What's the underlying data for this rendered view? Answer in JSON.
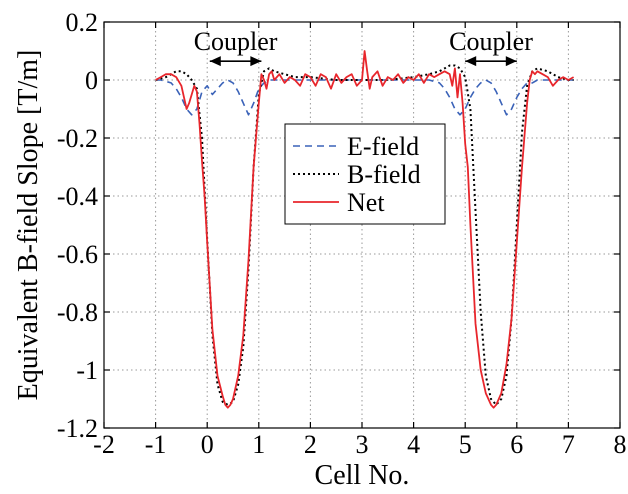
{
  "chart_data": {
    "type": "line",
    "title": "",
    "xlabel": "Cell No.",
    "ylabel": "Equivalent B-field Slope [T/m]",
    "xlim": [
      -2,
      8
    ],
    "ylim": [
      -1.2,
      0.2
    ],
    "xticks": [
      -2,
      -1,
      0,
      1,
      2,
      3,
      4,
      5,
      6,
      7,
      8
    ],
    "xtick_labels": [
      "-2",
      "-1",
      "0",
      "1",
      "2",
      "3",
      "4",
      "5",
      "6",
      "7",
      "8"
    ],
    "yticks": [
      -1.2,
      -1.0,
      -0.8,
      -0.6,
      -0.4,
      -0.2,
      0,
      0.2
    ],
    "ytick_labels": [
      "-1.2",
      "-1",
      "-0.8",
      "-0.6",
      "-0.4",
      "-0.2",
      "0",
      "0.2"
    ],
    "grid": true,
    "legend_position": "center",
    "annotations": [
      {
        "text": "Coupler",
        "x": 0.55,
        "y": 0.135
      },
      {
        "text": "Coupler",
        "x": 5.5,
        "y": 0.135
      }
    ],
    "arrows": [
      {
        "x1": 0.05,
        "x2": 1.05,
        "y": 0.065
      },
      {
        "x1": 5.0,
        "x2": 6.0,
        "y": 0.065
      }
    ],
    "series": [
      {
        "name": "E-field",
        "color": "#3a62b8",
        "dash": "dashed",
        "x": [
          -1.0,
          -0.9,
          -0.8,
          -0.7,
          -0.6,
          -0.5,
          -0.4,
          -0.3,
          -0.2,
          -0.1,
          0.0,
          0.1,
          0.2,
          0.3,
          0.4,
          0.5,
          0.6,
          0.7,
          0.8,
          0.9,
          1.0,
          1.1,
          1.2,
          1.4,
          1.6,
          1.8,
          2.0,
          2.5,
          3.0,
          3.5,
          4.0,
          4.3,
          4.5,
          4.6,
          4.7,
          4.8,
          4.9,
          5.0,
          5.1,
          5.2,
          5.3,
          5.4,
          5.5,
          5.6,
          5.7,
          5.8,
          5.9,
          6.0,
          6.1,
          6.2,
          6.3,
          6.4,
          6.6,
          6.8,
          7.0,
          7.1
        ],
        "y": [
          0.0,
          0.0,
          -0.005,
          -0.01,
          -0.03,
          -0.06,
          -0.1,
          -0.12,
          -0.1,
          -0.04,
          -0.02,
          -0.05,
          -0.03,
          -0.01,
          0.0,
          -0.01,
          -0.04,
          -0.08,
          -0.12,
          -0.08,
          -0.03,
          -0.01,
          0.0,
          0.0,
          0.0,
          0.0,
          0.0,
          0.0,
          0.0,
          0.0,
          0.0,
          0.0,
          -0.01,
          -0.03,
          -0.06,
          -0.1,
          -0.12,
          -0.1,
          -0.06,
          -0.03,
          -0.01,
          0.0,
          -0.01,
          -0.04,
          -0.08,
          -0.12,
          -0.1,
          -0.06,
          -0.03,
          -0.01,
          -0.01,
          0.0,
          0.0,
          0.0,
          0.0,
          0.0
        ]
      },
      {
        "name": "B-field",
        "color": "#000000",
        "dash": "dotted",
        "x": [
          -1.0,
          -0.8,
          -0.6,
          -0.5,
          -0.4,
          -0.3,
          -0.2,
          -0.1,
          0.0,
          0.1,
          0.2,
          0.3,
          0.4,
          0.5,
          0.6,
          0.7,
          0.8,
          0.9,
          1.0,
          1.1,
          1.2,
          1.3,
          1.5,
          1.7,
          2.0,
          2.5,
          3.0,
          3.5,
          4.0,
          4.3,
          4.5,
          4.6,
          4.7,
          4.8,
          4.9,
          5.0,
          5.1,
          5.2,
          5.3,
          5.4,
          5.5,
          5.6,
          5.7,
          5.8,
          5.9,
          6.0,
          6.1,
          6.2,
          6.3,
          6.4,
          6.6,
          6.8,
          7.0,
          7.1
        ],
        "y": [
          0.0,
          0.01,
          0.03,
          0.03,
          0.02,
          0.0,
          -0.03,
          -0.2,
          -0.55,
          -0.88,
          -1.05,
          -1.11,
          -1.12,
          -1.11,
          -1.05,
          -0.92,
          -0.65,
          -0.3,
          -0.05,
          0.03,
          0.04,
          0.03,
          0.02,
          0.01,
          0.01,
          0.0,
          0.0,
          0.0,
          0.01,
          0.02,
          0.03,
          0.04,
          0.05,
          0.05,
          0.04,
          0.01,
          -0.1,
          -0.45,
          -0.8,
          -1.02,
          -1.1,
          -1.12,
          -1.1,
          -1.02,
          -0.82,
          -0.5,
          -0.18,
          -0.02,
          0.03,
          0.04,
          0.03,
          0.01,
          0.0,
          0.0
        ]
      },
      {
        "name": "Net",
        "color": "#e8262c",
        "dash": "solid",
        "x": [
          -1.0,
          -0.9,
          -0.8,
          -0.7,
          -0.6,
          -0.5,
          -0.45,
          -0.4,
          -0.35,
          -0.3,
          -0.25,
          -0.2,
          -0.15,
          -0.1,
          -0.05,
          0.0,
          0.1,
          0.2,
          0.3,
          0.35,
          0.4,
          0.45,
          0.5,
          0.6,
          0.7,
          0.8,
          0.9,
          1.0,
          1.05,
          1.1,
          1.15,
          1.2,
          1.25,
          1.3,
          1.4,
          1.5,
          1.6,
          1.7,
          1.8,
          1.9,
          2.0,
          2.1,
          2.2,
          2.3,
          2.4,
          2.5,
          2.6,
          2.7,
          2.8,
          2.9,
          3.0,
          3.05,
          3.1,
          3.15,
          3.2,
          3.3,
          3.4,
          3.5,
          3.6,
          3.7,
          3.8,
          3.9,
          4.0,
          4.1,
          4.2,
          4.3,
          4.4,
          4.5,
          4.6,
          4.7,
          4.75,
          4.8,
          4.85,
          4.9,
          4.95,
          5.0,
          5.05,
          5.1,
          5.2,
          5.3,
          5.4,
          5.5,
          5.55,
          5.6,
          5.7,
          5.8,
          5.9,
          6.0,
          6.1,
          6.2,
          6.25,
          6.3,
          6.35,
          6.4,
          6.5,
          6.6,
          6.7,
          6.8,
          6.9,
          7.0,
          7.1
        ],
        "y": [
          0.0,
          0.01,
          0.02,
          0.02,
          0.01,
          -0.02,
          -0.06,
          -0.1,
          -0.08,
          -0.05,
          -0.02,
          -0.04,
          -0.15,
          -0.28,
          -0.4,
          -0.56,
          -0.86,
          -1.02,
          -1.09,
          -1.12,
          -1.13,
          -1.12,
          -1.1,
          -1.02,
          -0.88,
          -0.62,
          -0.3,
          -0.08,
          0.02,
          0.0,
          -0.03,
          0.02,
          0.03,
          0.0,
          0.02,
          -0.01,
          0.01,
          0.0,
          -0.02,
          0.02,
          0.01,
          -0.02,
          0.02,
          0.01,
          -0.03,
          0.02,
          -0.01,
          0.01,
          0.02,
          -0.02,
          0.0,
          0.1,
          0.03,
          -0.03,
          0.01,
          0.03,
          -0.02,
          0.01,
          0.0,
          0.02,
          -0.01,
          0.01,
          0.0,
          0.02,
          -0.01,
          0.02,
          0.01,
          0.02,
          0.03,
          0.02,
          -0.02,
          0.04,
          -0.06,
          0.02,
          -0.08,
          -0.22,
          -0.3,
          -0.5,
          -0.84,
          -1.0,
          -1.08,
          -1.12,
          -1.13,
          -1.12,
          -1.08,
          -0.98,
          -0.82,
          -0.56,
          -0.3,
          -0.08,
          0.0,
          0.03,
          0.02,
          0.03,
          0.02,
          0.01,
          -0.02,
          0.0,
          0.01,
          0.0,
          0.01
        ]
      }
    ]
  }
}
